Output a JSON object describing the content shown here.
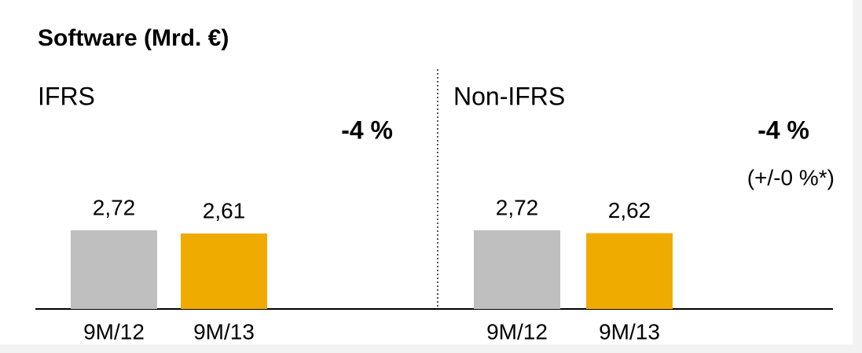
{
  "title": "Software (Mrd. €)",
  "chart_data": [
    {
      "type": "bar",
      "title": "IFRS",
      "categories": [
        "9M/12",
        "9M/13"
      ],
      "values": [
        2.72,
        2.61
      ],
      "value_labels": [
        "2,72",
        "2,61"
      ],
      "colors": [
        "#bfbfbf",
        "#f0ab00"
      ],
      "annotation": "-4 %"
    },
    {
      "type": "bar",
      "title": "Non-IFRS",
      "categories": [
        "9M/12",
        "9M/13"
      ],
      "values": [
        2.72,
        2.62
      ],
      "value_labels": [
        "2,72",
        "2,62"
      ],
      "colors": [
        "#bfbfbf",
        "#f0ab00"
      ],
      "annotation": "-4 %",
      "note": "(+/-0 %*)"
    }
  ]
}
